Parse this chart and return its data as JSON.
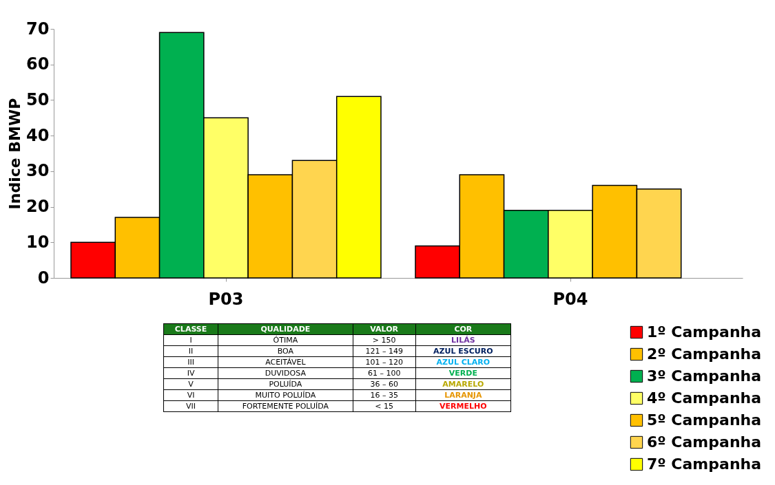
{
  "chart_data": {
    "type": "bar",
    "ylabel": "Indice BMWP",
    "categories": [
      "P03",
      "P04"
    ],
    "series": [
      {
        "name": "1º Campanha",
        "color": "#ff0000",
        "values": [
          10,
          9
        ]
      },
      {
        "name": "2º Campanha",
        "color": "#ffc000",
        "values": [
          17,
          29
        ]
      },
      {
        "name": "3º Campanha",
        "color": "#00b050",
        "values": [
          69,
          19
        ]
      },
      {
        "name": "4º Campanha",
        "color": "#ffff66",
        "values": [
          45,
          19
        ]
      },
      {
        "name": "5º Campanha",
        "color": "#ffc000",
        "values": [
          29,
          26
        ]
      },
      {
        "name": "6º Campanha",
        "color": "#ffd54f",
        "values": [
          33,
          25
        ]
      },
      {
        "name": "7º Campanha",
        "color": "#ffff00",
        "values": [
          51,
          null
        ]
      }
    ],
    "ylim": [
      0,
      70
    ],
    "yticks": [
      0,
      10,
      20,
      30,
      40,
      50,
      60,
      70
    ],
    "grid": false,
    "legend": "bottom right",
    "annotations": [
      "CLASSE",
      "QUALIDADE",
      "VALOR",
      "COR",
      "I",
      "ÓTIMA",
      "> 150",
      "LILÁS",
      "II",
      "BOA",
      "121 – 149",
      "AZUL ESCURO",
      "III",
      "ACEITÁVEL",
      "101 – 120",
      "AZUL CLARO",
      "IV",
      "DUVIDOSA",
      "61 – 100",
      "VERDE",
      "V",
      "POLUÍDA",
      "36 – 60",
      "AMARELO",
      "VI",
      "MUITO POLUÍDA",
      "16 – 35",
      "LARANJA",
      "VII",
      "FORTEMENTE POLUÍDA",
      "< 15",
      "VERMELHO"
    ]
  }
}
